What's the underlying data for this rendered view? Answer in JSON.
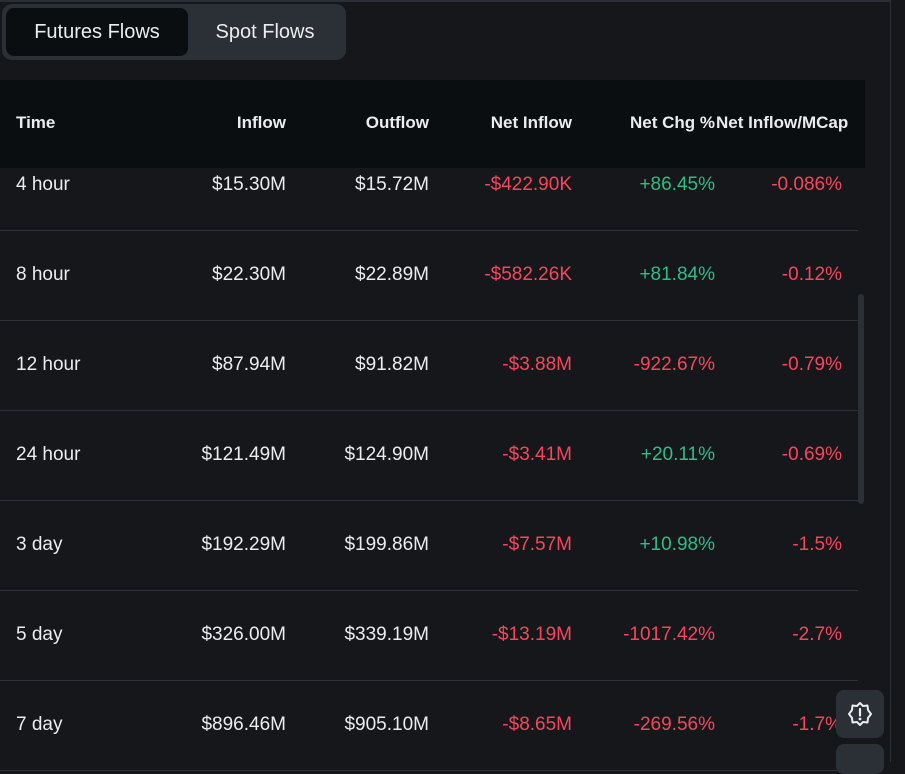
{
  "tabs": [
    {
      "label": "Futures Flows",
      "active": true
    },
    {
      "label": "Spot Flows",
      "active": false
    }
  ],
  "table": {
    "columns": [
      "Time",
      "Inflow",
      "Outflow",
      "Net Inflow",
      "Net Chg %",
      "Net Inflow/MCap"
    ],
    "rows": [
      {
        "time": "4 hour",
        "inflow": "$15.30M",
        "outflow": "$15.72M",
        "net_inflow": "-$422.90K",
        "net_chg": "+86.45%",
        "net_mcap": "-0.086%"
      },
      {
        "time": "8 hour",
        "inflow": "$22.30M",
        "outflow": "$22.89M",
        "net_inflow": "-$582.26K",
        "net_chg": "+81.84%",
        "net_mcap": "-0.12%"
      },
      {
        "time": "12 hour",
        "inflow": "$87.94M",
        "outflow": "$91.82M",
        "net_inflow": "-$3.88M",
        "net_chg": "-922.67%",
        "net_mcap": "-0.79%"
      },
      {
        "time": "24 hour",
        "inflow": "$121.49M",
        "outflow": "$124.90M",
        "net_inflow": "-$3.41M",
        "net_chg": "+20.11%",
        "net_mcap": "-0.69%"
      },
      {
        "time": "3 day",
        "inflow": "$192.29M",
        "outflow": "$199.86M",
        "net_inflow": "-$7.57M",
        "net_chg": "+10.98%",
        "net_mcap": "-1.5%"
      },
      {
        "time": "5 day",
        "inflow": "$326.00M",
        "outflow": "$339.19M",
        "net_inflow": "-$13.19M",
        "net_chg": "-1017.42%",
        "net_mcap": "-2.7%"
      },
      {
        "time": "7 day",
        "inflow": "$896.46M",
        "outflow": "$905.10M",
        "net_inflow": "-$8.65M",
        "net_chg": "-269.56%",
        "net_mcap": "-1.7%"
      }
    ]
  },
  "colors": {
    "positive": "#2ebd85",
    "negative": "#f6465d",
    "background": "#16171b"
  },
  "icons": {
    "floating_button": "alert-badge-icon"
  }
}
